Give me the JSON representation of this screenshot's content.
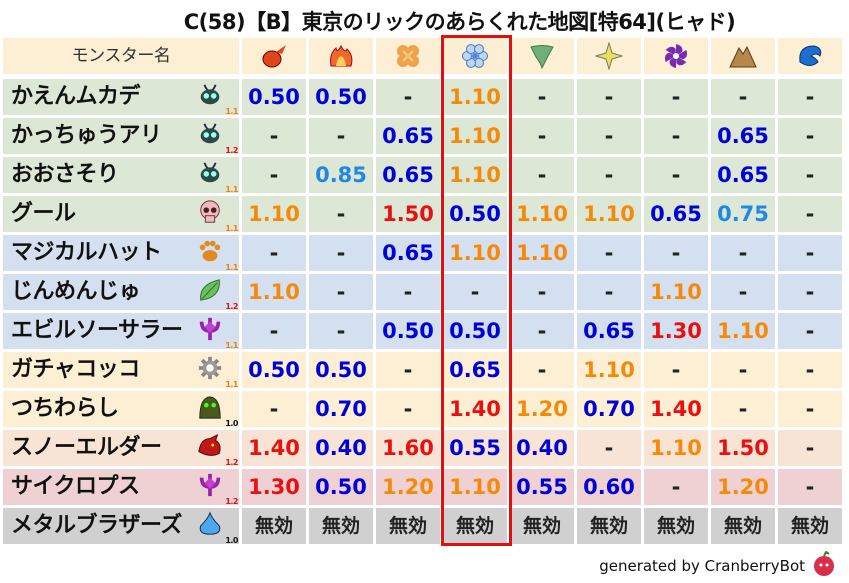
{
  "title": "C(58)【B】東京のリックのあらくれた地図[特64](ヒャド)",
  "header": {
    "name_label": "モンスター名",
    "elements": [
      {
        "icon": "fireball-icon",
        "color": "#e0461c"
      },
      {
        "icon": "flame-icon",
        "color": "#f06a2a"
      },
      {
        "icon": "explosion-icon",
        "color": "#f0a24a"
      },
      {
        "icon": "ice-icon",
        "color": "#6f9fe0"
      },
      {
        "icon": "wind-icon",
        "color": "#6fb07a"
      },
      {
        "icon": "light-icon",
        "color": "#e8e060"
      },
      {
        "icon": "dark-icon",
        "color": "#7a2ab0"
      },
      {
        "icon": "earth-icon",
        "color": "#b8854a"
      },
      {
        "icon": "water-icon",
        "color": "#1a6fd0"
      }
    ]
  },
  "highlight_column": 4,
  "colors": {
    "very_weak": "#0000d8",
    "weak": "#1e88e5",
    "strong": "#f58a0a",
    "very_strong": "#e81010",
    "neutral": "#222222"
  },
  "rows": [
    {
      "name": "かえんムカデ",
      "icon": "bug-icon",
      "level": "1.1",
      "bg": "#dde7d6",
      "values": [
        "0.50",
        "0.50",
        "-",
        "1.10",
        "-",
        "-",
        "-",
        "-",
        "-"
      ]
    },
    {
      "name": "かっちゅうアリ",
      "icon": "bug-icon",
      "level": "1.2",
      "bg": "#dde7d6",
      "values": [
        "-",
        "-",
        "0.65",
        "1.10",
        "-",
        "-",
        "-",
        "0.65",
        "-"
      ]
    },
    {
      "name": "おおさそり",
      "icon": "bug-icon",
      "level": "1.1",
      "bg": "#dde7d6",
      "values": [
        "-",
        "0.85",
        "0.65",
        "1.10",
        "-",
        "-",
        "-",
        "0.65",
        "-"
      ]
    },
    {
      "name": "グール",
      "icon": "skull-icon",
      "level": "1.1",
      "bg": "#dde7d6",
      "values": [
        "1.10",
        "-",
        "1.50",
        "0.50",
        "1.10",
        "1.10",
        "0.65",
        "0.75",
        "-"
      ]
    },
    {
      "name": "マジカルハット",
      "icon": "paw-icon",
      "level": "1.1",
      "bg": "#d4e0ef",
      "values": [
        "-",
        "-",
        "0.65",
        "1.10",
        "1.10",
        "-",
        "-",
        "-",
        "-"
      ]
    },
    {
      "name": "じんめんじゅ",
      "icon": "leaf-icon",
      "level": "1.2",
      "bg": "#d4e0ef",
      "values": [
        "1.10",
        "-",
        "-",
        "-",
        "-",
        "-",
        "1.10",
        "-",
        "-"
      ]
    },
    {
      "name": "エビルソーサラー",
      "icon": "trident-icon",
      "level": "1.1",
      "bg": "#d4e0ef",
      "values": [
        "-",
        "-",
        "0.50",
        "0.50",
        "-",
        "0.65",
        "1.30",
        "1.10",
        "-"
      ]
    },
    {
      "name": "ガチャコッコ",
      "icon": "gear-icon",
      "level": "1.1",
      "bg": "#fcefd4",
      "values": [
        "0.50",
        "0.50",
        "-",
        "0.65",
        "-",
        "1.10",
        "-",
        "-",
        "-"
      ]
    },
    {
      "name": "つちわらし",
      "icon": "blob-icon",
      "level": "1.0",
      "bg": "#fcefd4",
      "values": [
        "-",
        "0.70",
        "-",
        "1.40",
        "1.20",
        "0.70",
        "1.40",
        "-",
        "-"
      ]
    },
    {
      "name": "スノーエルダー",
      "icon": "dragon-icon",
      "level": "1.2",
      "bg": "#f8e4d4",
      "values": [
        "1.40",
        "0.40",
        "1.60",
        "0.55",
        "0.40",
        "-",
        "1.10",
        "1.50",
        "-"
      ]
    },
    {
      "name": "サイクロプス",
      "icon": "trident-icon",
      "level": "1.2",
      "bg": "#efd1d4",
      "values": [
        "1.30",
        "0.50",
        "1.20",
        "1.10",
        "0.55",
        "0.60",
        "-",
        "1.20",
        "-"
      ]
    },
    {
      "name": "メタルブラザーズ",
      "icon": "slime-icon",
      "level": "1.0",
      "bg": "#d0d0d0",
      "values": [
        "無効",
        "無効",
        "無効",
        "無効",
        "無効",
        "無効",
        "無効",
        "無効",
        "無効"
      ]
    }
  ],
  "footer": "generated by CranberryBot"
}
